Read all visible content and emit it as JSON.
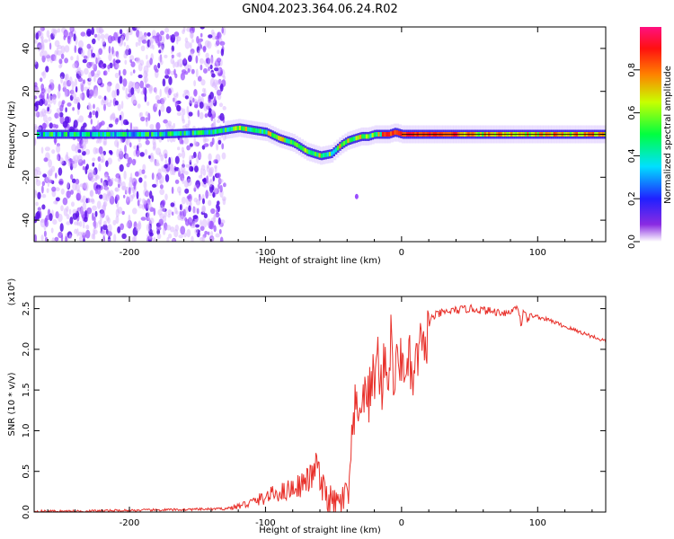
{
  "title": "GN04.2023.364.06.24.R02",
  "colors": {
    "snr_line": "#e8302a",
    "frame": "#000000",
    "tick": "#000000"
  },
  "chart_data": [
    {
      "type": "heatmap",
      "title": "GN04.2023.364.06.24.R02",
      "xlabel": "Height of straight line (km)",
      "ylabel": "Frequency (Hz)",
      "xlim": [
        -270,
        150
      ],
      "ylim": [
        -50,
        50
      ],
      "x_ticks": [
        "-200",
        "-100",
        "0",
        "100"
      ],
      "y_ticks": [
        "-40",
        "-20",
        "0",
        "20",
        "40"
      ],
      "colorbar": {
        "label": "Normalized spectral amplitude",
        "range": [
          0,
          1
        ],
        "ticks": [
          "0.0",
          "0.2",
          "0.4",
          "0.6",
          "0.8"
        ]
      },
      "ridge": {
        "x": [
          -265,
          -220,
          -180,
          -140,
          -120,
          -100,
          -90,
          -80,
          -70,
          -60,
          -52,
          -45,
          -40,
          -35,
          -30,
          -25,
          -20,
          -15,
          -10,
          -5,
          0,
          20,
          50,
          100,
          150
        ],
        "y": [
          0,
          0,
          0,
          1,
          3,
          1,
          -2,
          -4,
          -8,
          -10,
          -9,
          -5,
          -3,
          -2,
          -1,
          -1,
          0,
          0,
          0,
          1,
          0,
          0,
          0,
          0,
          0
        ]
      },
      "noise_region_x": [
        -270,
        -130
      ],
      "outlier": {
        "x": -33,
        "y": -29
      }
    },
    {
      "type": "line",
      "xlabel": "Height of straight line (km)",
      "ylabel": "SNR (10 * v/v)",
      "y_multiplier": "(x10⁴)",
      "xlim": [
        -270,
        150
      ],
      "ylim": [
        0,
        2.65
      ],
      "x_ticks": [
        "-200",
        "-100",
        "0",
        "100"
      ],
      "y_ticks": [
        "0.0",
        "0.5",
        "1.0",
        "1.5",
        "2.0",
        "2.5"
      ],
      "series": [
        {
          "x": [
            -270,
            -240,
            -200,
            -160,
            -130,
            -120,
            -110,
            -100,
            -95,
            -90,
            -85,
            -80,
            -75,
            -70,
            -65,
            -62,
            -60,
            -58,
            -55,
            -52,
            -50,
            -45,
            -40,
            -38,
            -36,
            -34,
            -32,
            -30,
            -28,
            -26,
            -24,
            -22,
            -20,
            -18,
            -16,
            -14,
            -12,
            -10,
            -8,
            -6,
            -4,
            -2,
            0,
            2,
            4,
            6,
            8,
            10,
            12,
            14,
            16,
            18,
            20,
            22,
            25,
            30,
            40,
            50,
            60,
            70,
            80,
            85,
            88,
            90,
            92,
            95,
            100,
            110,
            120,
            130,
            140,
            150
          ],
          "y": [
            0.01,
            0.01,
            0.02,
            0.03,
            0.04,
            0.07,
            0.12,
            0.18,
            0.22,
            0.24,
            0.26,
            0.3,
            0.33,
            0.38,
            0.45,
            0.65,
            0.35,
            0.28,
            0.2,
            0.12,
            0.08,
            0.1,
            0.2,
            0.35,
            0.9,
            1.3,
            1.0,
            1.5,
            1.2,
            1.6,
            1.3,
            1.8,
            1.5,
            2.0,
            1.7,
            1.5,
            2.1,
            1.4,
            2.2,
            1.6,
            1.7,
            2.0,
            1.75,
            1.9,
            1.6,
            1.85,
            1.55,
            1.7,
            1.95,
            2.05,
            1.9,
            2.1,
            2.3,
            2.38,
            2.42,
            2.45,
            2.48,
            2.5,
            2.48,
            2.46,
            2.45,
            2.55,
            2.3,
            2.5,
            2.35,
            2.42,
            2.4,
            2.35,
            2.28,
            2.22,
            2.16,
            2.1
          ]
        }
      ]
    }
  ]
}
